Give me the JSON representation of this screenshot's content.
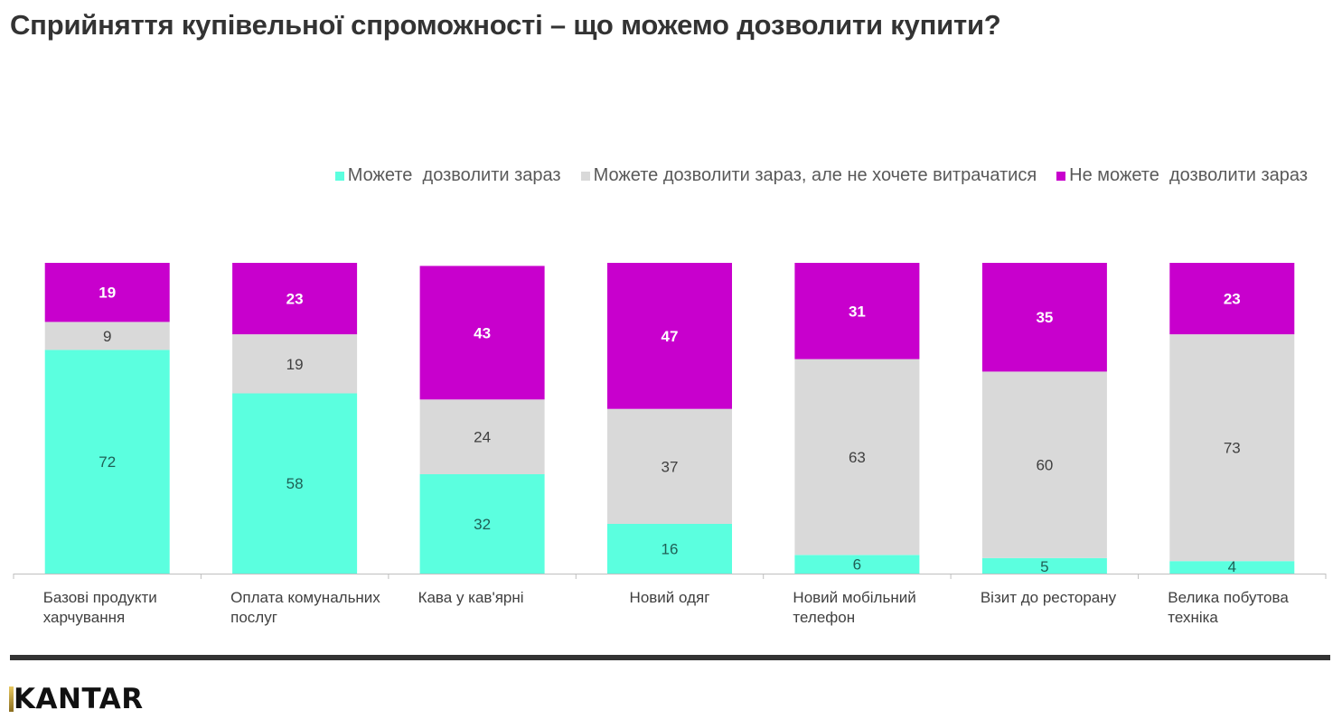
{
  "title": "Сприйняття купівельної спроможності – що можемо дозволити купити?",
  "colors": {
    "can_now": "#5BFFDF",
    "can_but_dont_want": "#D9D9D9",
    "cannot": "#C800CD",
    "axis": "#BFBFBF",
    "footer_rule": "#333333"
  },
  "chart_data": {
    "type": "bar",
    "stacked": true,
    "normalized_percent": true,
    "title": "Сприйняття купівельної спроможності – що можемо дозволити купити?",
    "xlabel": "",
    "ylabel": "",
    "ylim": [
      0,
      100
    ],
    "grid": false,
    "legend_position": "top-right",
    "categories": [
      "Базові продукти харчування",
      "Оплата комунальних послуг",
      "Кава у кав'ярні",
      "Новий одяг",
      "Новий мобільний телефон",
      "Візит до ресторану",
      "Велика побутова техніка"
    ],
    "series": [
      {
        "name": "Можете  дозволити зараз",
        "color": "#5BFFDF",
        "label_color": "#1F5F55",
        "values": [
          72,
          58,
          32,
          16,
          6,
          5,
          4
        ]
      },
      {
        "name": "Можете дозволити зараз, але не хочете витрачатися",
        "color": "#D9D9D9",
        "label_color": "#404040",
        "values": [
          9,
          19,
          24,
          37,
          63,
          60,
          73
        ]
      },
      {
        "name": "Не можете  дозволити зараз",
        "color": "#C800CD",
        "label_color": "#FFFFFF",
        "values": [
          19,
          23,
          43,
          47,
          31,
          35,
          23
        ]
      }
    ]
  },
  "category_label_lines": [
    [
      "Базові продукти",
      "харчування"
    ],
    [
      "Оплата комунальних",
      "послуг"
    ],
    [
      "Кава у кав'ярні"
    ],
    [
      "Новий одяг"
    ],
    [
      "Новий мобільний",
      "телефон"
    ],
    [
      "Візит до ресторану"
    ],
    [
      "Велика побутова",
      "техніка"
    ]
  ],
  "footer": {
    "logo_text": "KANTAR"
  }
}
